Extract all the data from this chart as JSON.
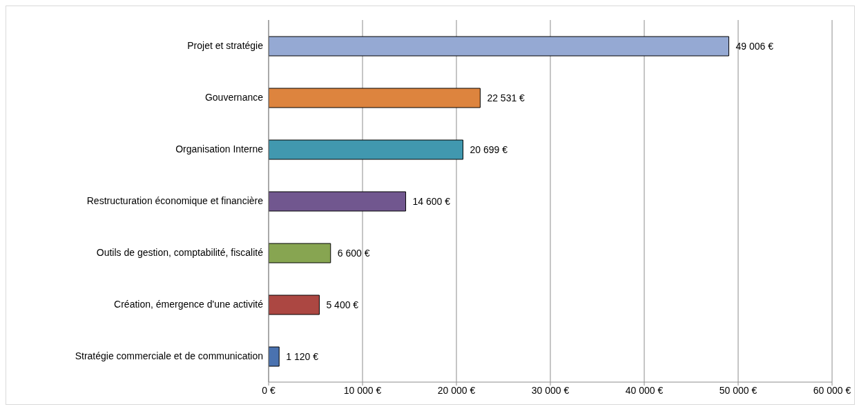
{
  "chart_data": {
    "type": "bar",
    "orientation": "horizontal",
    "categories": [
      "Projet et stratégie",
      "Gouvernance",
      "Organisation Interne",
      "Restructuration économique et financière",
      "Outils de gestion, comptabilité, fiscalité",
      "Création, émergence d'une activité",
      "Stratégie commerciale et de communication"
    ],
    "values": [
      49006,
      22531,
      20699,
      14600,
      6600,
      5400,
      1120
    ],
    "colors": [
      "#95a9d3",
      "#dd843e",
      "#4198af",
      "#71578f",
      "#87a551",
      "#ac4742",
      "#4a72b0"
    ],
    "value_labels": [
      "49 006 €",
      "22 531 €",
      "20 699 €",
      "14 600 €",
      "6 600 €",
      "5 400 €",
      "1 120 €"
    ],
    "xlim": [
      0,
      60000
    ],
    "xticks": [
      {
        "value": 0,
        "label": "0 €"
      },
      {
        "value": 10000,
        "label": "10 000 €"
      },
      {
        "value": 20000,
        "label": "20 000 €"
      },
      {
        "value": 30000,
        "label": "30 000 €"
      },
      {
        "value": 40000,
        "label": "40 000 €"
      },
      {
        "value": 50000,
        "label": "50 000 €"
      },
      {
        "value": 60000,
        "label": "60 000 €"
      }
    ],
    "grid": "x"
  }
}
